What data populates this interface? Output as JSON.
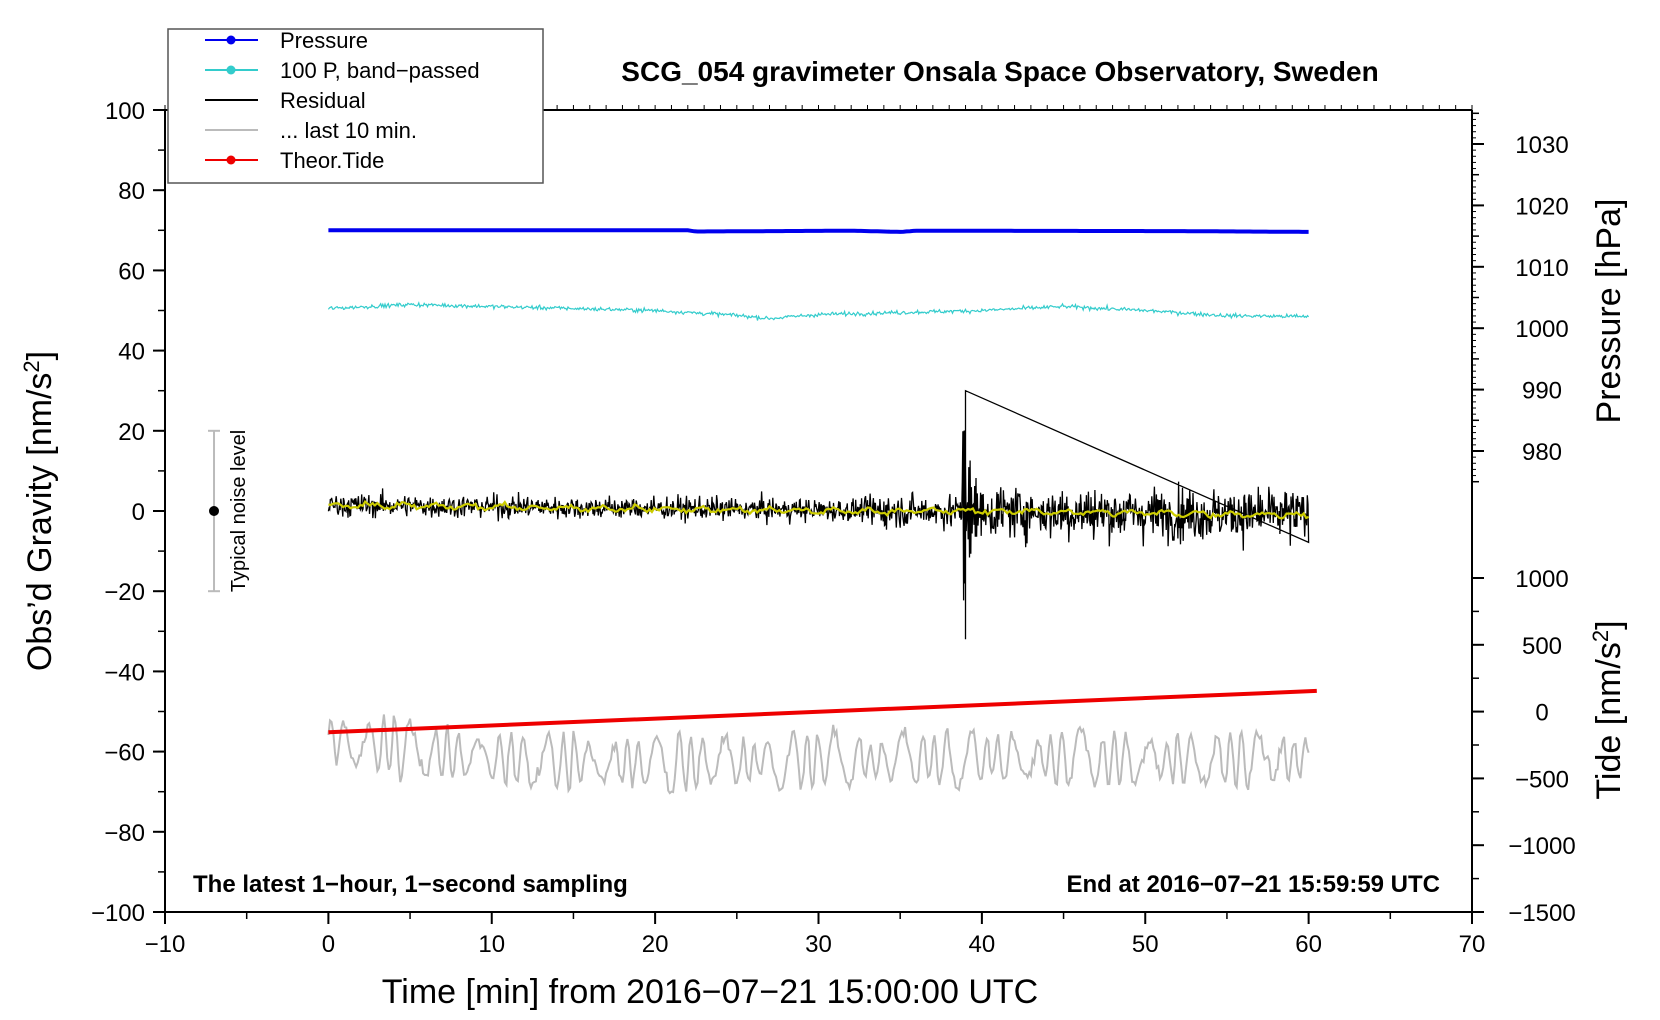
{
  "chart_data": {
    "type": "line",
    "title": "SCG_054 gravimeter Onsala Space Observatory, Sweden",
    "xlabel": "Time [min] from 2016−07−21 15:00:00 UTC",
    "ylabel_left_main": "Obs’d Gravity [nm/s",
    "ylabel_left_sup": "2",
    "ylabel_left_end": "]",
    "ylabel_right_pressure": "Pressure [hPa]",
    "ylabel_right_tide_main": "Tide [nm/s",
    "ylabel_right_tide_sup": "2",
    "ylabel_right_tide_end": "]",
    "xlim": [
      -10,
      70
    ],
    "ylim": [
      -100,
      100
    ],
    "pressure_ylim": [
      975,
      1035
    ],
    "tide_ylim": [
      -1500,
      1000
    ],
    "x_ticks": [
      "−10",
      "0",
      "10",
      "20",
      "30",
      "40",
      "50",
      "60",
      "70"
    ],
    "y_ticks": [
      "100",
      "80",
      "60",
      "40",
      "20",
      "0",
      "−20",
      "−40",
      "−60",
      "−80",
      "−100"
    ],
    "pressure_ticks": [
      "1030",
      "1020",
      "1010",
      "1000",
      "990",
      "980"
    ],
    "tide_ticks": [
      "1000",
      "500",
      "0",
      "−500",
      "−1000",
      "−1500"
    ],
    "note_left": "The latest 1−hour, 1−second sampling",
    "note_right": "End at 2016−07−21 15:59:59 UTC",
    "noise_label": "Typical noise level",
    "noise_bar": {
      "x": -7,
      "center": 0,
      "low": -20,
      "high": 20
    },
    "grid": false,
    "legend_position": "top-left",
    "legend": [
      {
        "name": "Pressure",
        "color": "#0000ee",
        "marker": true
      },
      {
        "name": "100 P, band−passed",
        "color": "#33cccc",
        "marker": true
      },
      {
        "name": "Residual",
        "color": "#000000",
        "marker": false
      },
      {
        "name": "... last 10 min.",
        "color": "#bbbbbb",
        "marker": false
      },
      {
        "name": "Theor.Tide",
        "color": "#ee0000",
        "marker": true
      }
    ],
    "series": [
      {
        "name": "Pressure",
        "color": "#0000ee",
        "axis": "left",
        "x": [
          0,
          22,
          22.5,
          32,
          35,
          36,
          52,
          60
        ],
        "y": [
          70,
          70,
          69.7,
          69.9,
          69.6,
          69.9,
          69.8,
          69.6
        ]
      },
      {
        "name": "100 P, band−passed",
        "color": "#33cccc",
        "axis": "left",
        "x": [
          0,
          5,
          10,
          15,
          20,
          25,
          27,
          30,
          35,
          40,
          45,
          50,
          55,
          60
        ],
        "y": [
          50.5,
          51.5,
          51,
          50.5,
          50,
          48.8,
          48,
          49,
          49.5,
          50,
          51,
          50,
          48.7,
          48.5
        ]
      },
      {
        "name": "Residual",
        "color": "#000000",
        "axis": "left",
        "x": [
          0,
          10,
          20,
          30,
          33,
          38,
          39,
          39.5,
          40,
          45,
          50,
          55,
          60
        ],
        "y": [
          1.5,
          0.8,
          0.3,
          0,
          -1,
          2,
          30,
          -32,
          4,
          -1,
          0,
          0,
          -1
        ]
      },
      {
        "name": "Residual smoothed",
        "color": "#cccc00",
        "axis": "left",
        "x": [
          0,
          10,
          20,
          30,
          40,
          50,
          60
        ],
        "y": [
          1.5,
          1,
          0.5,
          0,
          0,
          -0.5,
          -1
        ]
      },
      {
        "name": "... last 10 min.",
        "color": "#bbbbbb",
        "axis": "left",
        "x": [
          0,
          10,
          20,
          30,
          40,
          50,
          60
        ],
        "y": [
          -57,
          -62,
          -63,
          -62,
          -62,
          -62,
          -62
        ]
      },
      {
        "name": "Theor.Tide",
        "color": "#ee0000",
        "axis": "tide",
        "x": [
          0,
          60.5
        ],
        "y": [
          -155,
          155
        ]
      }
    ]
  }
}
